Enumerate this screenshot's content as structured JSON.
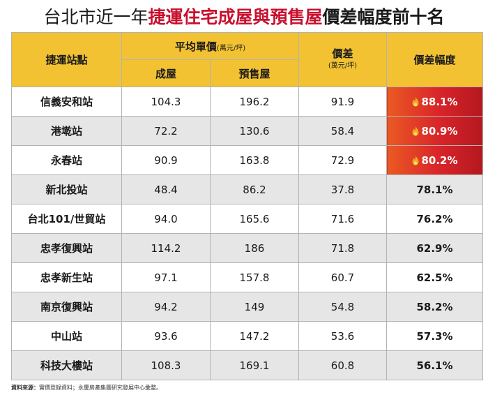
{
  "title": {
    "prefix": "台北市近一年",
    "highlight": "捷運住宅成屋與預售屋",
    "suffix": "價差幅度前十名"
  },
  "header": {
    "station": "捷運站點",
    "avg_price": "平均單價",
    "avg_price_unit": "(萬元/坪)",
    "existing": "成屋",
    "presale": "預售屋",
    "diff": "價差",
    "diff_unit": "(萬元/坪)",
    "diff_pct": "價差幅度"
  },
  "rows": [
    {
      "station": "信義安和站",
      "existing": "104.3",
      "presale": "196.2",
      "diff": "91.9",
      "pct": "88.1%",
      "hot": true
    },
    {
      "station": "港墘站",
      "existing": "72.2",
      "presale": "130.6",
      "diff": "58.4",
      "pct": "80.9%",
      "hot": true
    },
    {
      "station": "永春站",
      "existing": "90.9",
      "presale": "163.8",
      "diff": "72.9",
      "pct": "80.2%",
      "hot": true
    },
    {
      "station": "新北投站",
      "existing": "48.4",
      "presale": "86.2",
      "diff": "37.8",
      "pct": "78.1%",
      "hot": false
    },
    {
      "station": "台北101/世貿站",
      "existing": "94.0",
      "presale": "165.6",
      "diff": "71.6",
      "pct": "76.2%",
      "hot": false
    },
    {
      "station": "忠孝復興站",
      "existing": "114.2",
      "presale": "186",
      "diff": "71.8",
      "pct": "62.9%",
      "hot": false
    },
    {
      "station": "忠孝新生站",
      "existing": "97.1",
      "presale": "157.8",
      "diff": "60.7",
      "pct": "62.5%",
      "hot": false
    },
    {
      "station": "南京復興站",
      "existing": "94.2",
      "presale": "149",
      "diff": "54.8",
      "pct": "58.2%",
      "hot": false
    },
    {
      "station": "中山站",
      "existing": "93.6",
      "presale": "147.2",
      "diff": "53.6",
      "pct": "57.3%",
      "hot": false
    },
    {
      "station": "科技大樓站",
      "existing": "108.3",
      "presale": "169.1",
      "diff": "60.8",
      "pct": "56.1%",
      "hot": false
    }
  ],
  "source": {
    "label": "資料來源：",
    "text": "實價登錄資料；永慶房產集團研究發展中心彙整。"
  },
  "colors": {
    "header_bg": "#f3c233",
    "title_highlight": "#c8102e",
    "hot_cell": "#d8242a",
    "alt_row": "#e6e6e6"
  },
  "icons": {
    "hot_marker": "flame-icon"
  }
}
